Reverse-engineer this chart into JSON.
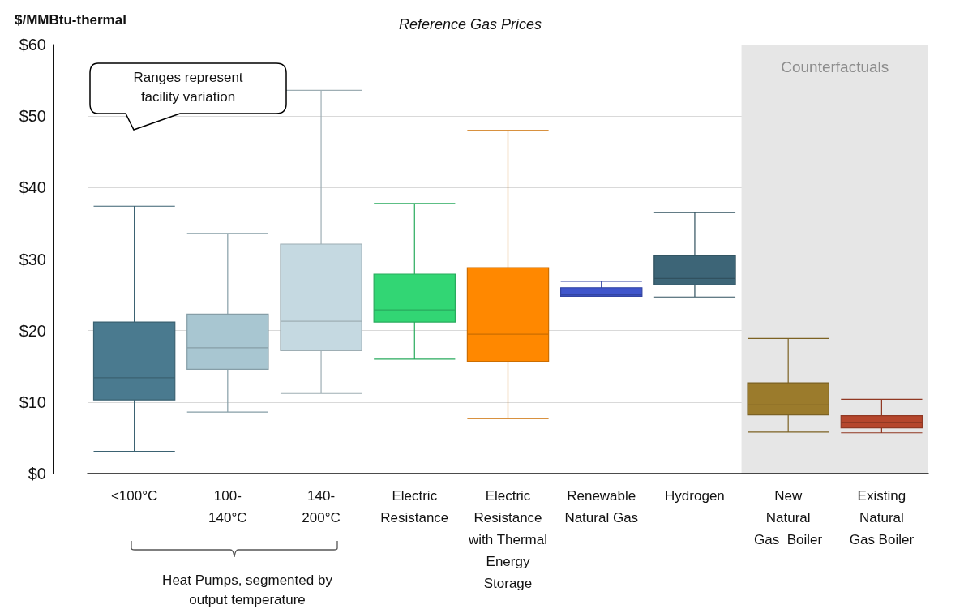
{
  "chart_data": {
    "type": "box",
    "title": "Reference Gas Prices",
    "ylabel": "$/MMBtu-thermal",
    "categories": [
      "<100°C",
      "100-\n140°C",
      "140-\n200°C",
      "Electric\nResistance",
      "Electric\nResistance\nwith Thermal\nEnergy\nStorage",
      "Renewable\nNatural Gas",
      "Hydrogen",
      "New\nNatural\nGas  Boiler",
      "Existing\nNatural\nGas Boiler"
    ],
    "boxes": [
      {
        "low": 3.1,
        "q1": 10.3,
        "median": 13.4,
        "q3": 21.2,
        "high": 37.4
      },
      {
        "low": 8.6,
        "q1": 14.6,
        "median": 17.6,
        "q3": 22.3,
        "high": 33.6
      },
      {
        "low": 11.2,
        "q1": 17.2,
        "median": 21.3,
        "q3": 32.1,
        "high": 53.6
      },
      {
        "low": 16.0,
        "q1": 21.2,
        "median": 22.9,
        "q3": 27.9,
        "high": 37.8
      },
      {
        "low": 7.7,
        "q1": 15.7,
        "median": 19.5,
        "q3": 28.8,
        "high": 48.0
      },
      {
        "low": 24.8,
        "q1": 24.8,
        "median": 25.0,
        "q3": 26.0,
        "high": 26.9
      },
      {
        "low": 24.7,
        "q1": 26.4,
        "median": 27.3,
        "q3": 30.5,
        "high": 36.5
      },
      {
        "low": 5.8,
        "q1": 8.2,
        "median": 9.6,
        "q3": 12.7,
        "high": 18.9
      },
      {
        "low": 5.7,
        "q1": 6.4,
        "median": 7.1,
        "q3": 8.1,
        "high": 10.4
      }
    ],
    "colors": [
      "#4a7a8f",
      "#a8c6d1",
      "#c5d9e1",
      "#32d674",
      "#ff8800",
      "#4056cc",
      "#3d6577",
      "#9b7b2c",
      "#b5462c"
    ],
    "ylim": [
      0,
      60
    ],
    "yticks": [
      {
        "value": 0,
        "label": "$0"
      },
      {
        "value": 10,
        "label": "$10"
      },
      {
        "value": 20,
        "label": "$20"
      },
      {
        "value": 30,
        "label": "$30"
      },
      {
        "value": 40,
        "label": "$40"
      },
      {
        "value": 50,
        "label": "$50"
      },
      {
        "value": 60,
        "label": "$60"
      }
    ],
    "grid": "y",
    "bands": [
      {
        "axis": "x",
        "from": "New\nNatural\nGas  Boiler",
        "to": "Existing\nNatural\nGas Boiler",
        "label": "Counterfactuals",
        "color": "#e6e6e6"
      }
    ],
    "annotations": [
      "Ranges represent\nfacility variation",
      "Heat Pumps, segmented by\noutput temperature"
    ]
  }
}
